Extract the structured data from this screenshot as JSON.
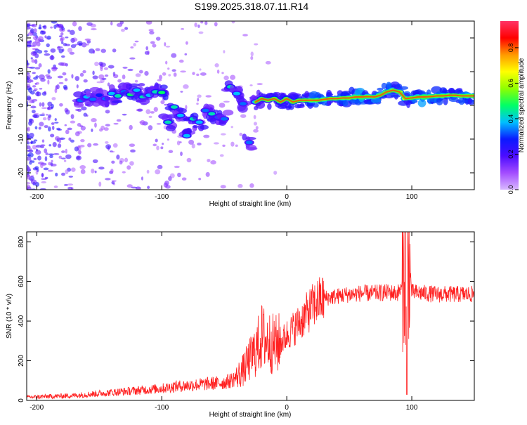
{
  "title": "S199.2025.318.07.11.R14",
  "chart_data": [
    {
      "type": "heatmap",
      "xlabel": "Height of straight line (km)",
      "ylabel": "Frequency (Hz)",
      "xlim": [
        -208,
        150
      ],
      "ylim": [
        -25,
        25
      ],
      "xticks": [
        -200,
        -100,
        0,
        100
      ],
      "yticks": [
        -20,
        -10,
        0,
        10,
        20
      ],
      "ridge": [
        {
          "x": -165,
          "y": 1.5,
          "amp": 0.35
        },
        {
          "x": -160,
          "y": 2.5,
          "amp": 0.4
        },
        {
          "x": -155,
          "y": 1.8,
          "amp": 0.35
        },
        {
          "x": -150,
          "y": 3.0,
          "amp": 0.3
        },
        {
          "x": -145,
          "y": 2.0,
          "amp": 0.35
        },
        {
          "x": -140,
          "y": 3.5,
          "amp": 0.4
        },
        {
          "x": -135,
          "y": 2.8,
          "amp": 0.45
        },
        {
          "x": -130,
          "y": 4.0,
          "amp": 0.35
        },
        {
          "x": -125,
          "y": 3.2,
          "amp": 0.5
        },
        {
          "x": -120,
          "y": 4.5,
          "amp": 0.4
        },
        {
          "x": -115,
          "y": 2.5,
          "amp": 0.45
        },
        {
          "x": -110,
          "y": 3.0,
          "amp": 0.4
        },
        {
          "x": -105,
          "y": 4.0,
          "amp": 0.45
        },
        {
          "x": -100,
          "y": 3.8,
          "amp": 0.5
        },
        {
          "x": -95,
          "y": -5.0,
          "amp": 0.45
        },
        {
          "x": -90,
          "y": -0.5,
          "amp": 0.45
        },
        {
          "x": -85,
          "y": -3.0,
          "amp": 0.4
        },
        {
          "x": -80,
          "y": -9.0,
          "amp": 0.4
        },
        {
          "x": -75,
          "y": -4.0,
          "amp": 0.45
        },
        {
          "x": -70,
          "y": -5.0,
          "amp": 0.4
        },
        {
          "x": -65,
          "y": -1.5,
          "amp": 0.35
        },
        {
          "x": -60,
          "y": -2.5,
          "amp": 0.45
        },
        {
          "x": -55,
          "y": -3.5,
          "amp": 0.4
        },
        {
          "x": -50,
          "y": -4.0,
          "amp": 0.35
        },
        {
          "x": -45,
          "y": 5.5,
          "amp": 0.45
        },
        {
          "x": -40,
          "y": 3.5,
          "amp": 0.4
        },
        {
          "x": -35,
          "y": 0.5,
          "amp": 0.35
        },
        {
          "x": -30,
          "y": -11.0,
          "amp": 0.35
        },
        {
          "x": -25,
          "y": 1.0,
          "amp": 0.4
        },
        {
          "x": -20,
          "y": 2.0,
          "amp": 0.45
        },
        {
          "x": -15,
          "y": 1.5,
          "amp": 0.45
        },
        {
          "x": -10,
          "y": 2.0,
          "amp": 0.55
        },
        {
          "x": -5,
          "y": 1.0,
          "amp": 0.5
        },
        {
          "x": 0,
          "y": 2.0,
          "amp": 0.55
        },
        {
          "x": 5,
          "y": 1.0,
          "amp": 0.6
        },
        {
          "x": 10,
          "y": 1.5,
          "amp": 0.55
        },
        {
          "x": 15,
          "y": 1.5,
          "amp": 0.6
        },
        {
          "x": 20,
          "y": 1.5,
          "amp": 0.75
        },
        {
          "x": 25,
          "y": 1.5,
          "amp": 0.8
        },
        {
          "x": 30,
          "y": 1.8,
          "amp": 0.7
        },
        {
          "x": 35,
          "y": 2.0,
          "amp": 0.6
        },
        {
          "x": 40,
          "y": 2.0,
          "amp": 0.65
        },
        {
          "x": 45,
          "y": 2.2,
          "amp": 0.7
        },
        {
          "x": 50,
          "y": 2.2,
          "amp": 0.7
        },
        {
          "x": 55,
          "y": 2.5,
          "amp": 0.8
        },
        {
          "x": 60,
          "y": 2.5,
          "amp": 0.85
        },
        {
          "x": 65,
          "y": 2.6,
          "amp": 0.75
        },
        {
          "x": 70,
          "y": 2.5,
          "amp": 0.7
        },
        {
          "x": 75,
          "y": 3.0,
          "amp": 0.8
        },
        {
          "x": 80,
          "y": 4.0,
          "amp": 0.75
        },
        {
          "x": 85,
          "y": 4.5,
          "amp": 0.7
        },
        {
          "x": 90,
          "y": 4.0,
          "amp": 0.65
        },
        {
          "x": 95,
          "y": 2.0,
          "amp": 0.7
        },
        {
          "x": 100,
          "y": 2.2,
          "amp": 0.65
        },
        {
          "x": 105,
          "y": 2.5,
          "amp": 0.75
        },
        {
          "x": 110,
          "y": 2.5,
          "amp": 0.85
        },
        {
          "x": 115,
          "y": 2.6,
          "amp": 0.8
        },
        {
          "x": 120,
          "y": 2.8,
          "amp": 0.7
        },
        {
          "x": 125,
          "y": 2.8,
          "amp": 0.75
        },
        {
          "x": 130,
          "y": 3.0,
          "amp": 0.7
        },
        {
          "x": 135,
          "y": 3.0,
          "amp": 0.65
        },
        {
          "x": 140,
          "y": 2.8,
          "amp": 0.7
        },
        {
          "x": 145,
          "y": 2.8,
          "amp": 0.75
        },
        {
          "x": 150,
          "y": 2.8,
          "amp": 0.7
        }
      ],
      "colorbar": {
        "label": "Normalized spectral amplitude",
        "range": [
          0.0,
          0.95
        ],
        "ticks": [
          "0.0",
          "0.2",
          "0.4",
          "0.6",
          "0.8"
        ],
        "stops": [
          "#d8b8ff",
          "#a34cff",
          "#4b0cff",
          "#0a1aff",
          "#00bfff",
          "#00ff66",
          "#8fff00",
          "#ffff00",
          "#ff9900",
          "#ff0000",
          "#ff3366"
        ]
      }
    },
    {
      "type": "line",
      "xlabel": "Height of straight line (km)",
      "ylabel": "SNR (10 * v/v)",
      "xlim": [
        -208,
        150
      ],
      "ylim": [
        0,
        850
      ],
      "xticks": [
        -200,
        -100,
        0,
        100
      ],
      "yticks": [
        0,
        200,
        400,
        600,
        800
      ],
      "series": [
        {
          "name": "SNR",
          "color": "#ff2020",
          "x": [
            -208,
            -200,
            -190,
            -180,
            -170,
            -160,
            -150,
            -140,
            -130,
            -120,
            -110,
            -100,
            -90,
            -80,
            -70,
            -60,
            -50,
            -45,
            -40,
            -35,
            -30,
            -25,
            -20,
            -15,
            -10,
            -5,
            0,
            5,
            10,
            15,
            20,
            25,
            30,
            40,
            50,
            60,
            70,
            80,
            88,
            92,
            95,
            96,
            97,
            100,
            110,
            120,
            130,
            140,
            150
          ],
          "y": [
            15,
            18,
            20,
            22,
            25,
            30,
            35,
            40,
            45,
            50,
            55,
            60,
            70,
            75,
            80,
            85,
            90,
            100,
            120,
            150,
            200,
            250,
            320,
            300,
            280,
            290,
            330,
            360,
            390,
            430,
            470,
            500,
            515,
            525,
            535,
            540,
            540,
            545,
            540,
            560,
            750,
            30,
            780,
            545,
            540,
            535,
            535,
            535,
            535
          ]
        }
      ]
    }
  ]
}
